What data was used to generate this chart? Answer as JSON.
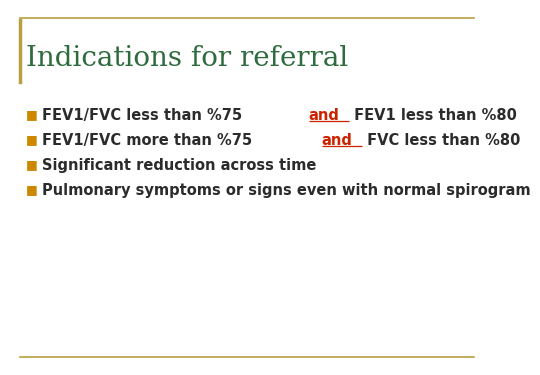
{
  "title": "Indications for referral",
  "title_color": "#2E6B3E",
  "title_fontsize": 20,
  "title_font": "serif",
  "background_color": "#FFFFFF",
  "border_color": "#B8A040",
  "bullet_color": "#CC8800",
  "bullet_char": "■",
  "text_color": "#2B2B2B",
  "and_color": "#CC2200",
  "text_fontsize": 10.5,
  "bullet_fontsize": 9,
  "slide_bg": "#F5F5F0",
  "bullets": [
    {
      "parts": [
        {
          "text": "FEV1/FVC less than %75 ",
          "color": "#2B2B2B",
          "underline": false
        },
        {
          "text": "and",
          "color": "#CC2200",
          "underline": true
        },
        {
          "text": " FEV1 less than %80",
          "color": "#2B2B2B",
          "underline": false
        }
      ]
    },
    {
      "parts": [
        {
          "text": "FEV1/FVC more than %75 ",
          "color": "#2B2B2B",
          "underline": false
        },
        {
          "text": "and",
          "color": "#CC2200",
          "underline": true
        },
        {
          "text": " FVC less than %80",
          "color": "#2B2B2B",
          "underline": false
        }
      ]
    },
    {
      "parts": [
        {
          "text": "Significant reduction across time",
          "color": "#2B2B2B",
          "underline": false
        }
      ]
    },
    {
      "parts": [
        {
          "text": "Pulmonary symptoms or signs even with normal spirogram",
          "color": "#2B2B2B",
          "underline": false
        }
      ]
    }
  ]
}
